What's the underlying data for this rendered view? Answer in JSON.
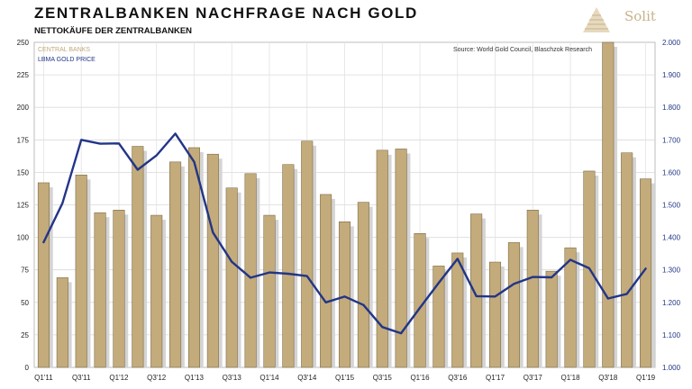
{
  "header": {
    "title": "ZENTRALBANKEN NACHFRAGE NACH GOLD",
    "subtitle": "NETTOKÄUFE DER ZENTRALBANKEN",
    "logo_text": "Solit",
    "logo_icon": "pyramid-icon"
  },
  "colors": {
    "bar": "#c3ab7b",
    "bar_edge": "#6e5c39",
    "bar_shadow": "#d4d4d4",
    "line": "#223587",
    "legend_bar_text": "#c0a878"
  },
  "chart_data": {
    "type": "bar",
    "title": "ZENTRALBANKEN NACHFRAGE NACH GOLD",
    "subtitle": "NETTOKÄUFE DER ZENTRALBANKEN",
    "source": "Source: World Gold Council, Blaschzok Research",
    "legend_position": "top-left",
    "categories": [
      "Q1'11",
      "Q2'11",
      "Q3'11",
      "Q4'11",
      "Q1'12",
      "Q2'12",
      "Q3'12",
      "Q4'12",
      "Q1'13",
      "Q2'13",
      "Q3'13",
      "Q4'13",
      "Q1'14",
      "Q2'14",
      "Q3'14",
      "Q4'14",
      "Q1'15",
      "Q2'15",
      "Q3'15",
      "Q4'15",
      "Q1'16",
      "Q2'16",
      "Q3'16",
      "Q4'16",
      "Q1'17",
      "Q2'17",
      "Q3'17",
      "Q4'17",
      "Q1'18",
      "Q2'18",
      "Q3'18",
      "Q4'18",
      "Q1'19"
    ],
    "x_tick_labels": [
      "Q1'11",
      "Q3'11",
      "Q1'12",
      "Q3'12",
      "Q1'13",
      "Q3'13",
      "Q1'14",
      "Q3'14",
      "Q1'15",
      "Q3'15",
      "Q1'16",
      "Q3'16",
      "Q1'17",
      "Q3'17",
      "Q1'18",
      "Q3'18",
      "Q1'19"
    ],
    "ylim_left": [
      0,
      250
    ],
    "yticks_left": [
      "0",
      "25",
      "50",
      "75",
      "100",
      "125",
      "150",
      "175",
      "200",
      "225",
      "250"
    ],
    "ylim_right": [
      1000,
      2000
    ],
    "yticks_right": [
      "1.000",
      "1.100",
      "1.200",
      "1.300",
      "1.400",
      "1.500",
      "1.600",
      "1.700",
      "1.800",
      "1.900",
      "2.000"
    ],
    "grid": true,
    "series": [
      {
        "name": "CENTRAL BANKS",
        "type": "bar",
        "axis": "left",
        "values": [
          142,
          69,
          148,
          119,
          121,
          170,
          117,
          158,
          169,
          164,
          138,
          149,
          117,
          156,
          174,
          133,
          112,
          127,
          167,
          168,
          103,
          78,
          88,
          118,
          81,
          96,
          121,
          74,
          92,
          151,
          250,
          165,
          145
        ]
      },
      {
        "name": "LBMA GOLD PRICE",
        "type": "line",
        "axis": "right",
        "values": [
          1385,
          1505,
          1700,
          1688,
          1689,
          1608,
          1652,
          1719,
          1632,
          1415,
          1325,
          1276,
          1292,
          1288,
          1281,
          1200,
          1218,
          1192,
          1124,
          1105,
          1183,
          1260,
          1334,
          1219,
          1218,
          1257,
          1278,
          1277,
          1331,
          1305,
          1212,
          1226,
          1304
        ]
      }
    ]
  }
}
